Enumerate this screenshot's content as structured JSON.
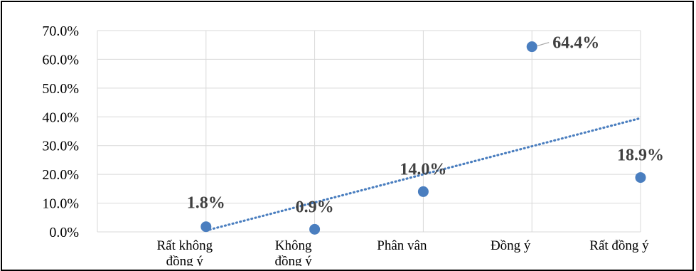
{
  "chart_data": {
    "type": "scatter",
    "categories": [
      [
        "Rất không",
        "đồng ý"
      ],
      [
        "Không",
        "đồng ý"
      ],
      [
        "Phân vân"
      ],
      [
        "Đồng ý"
      ],
      [
        "Rất đồng ý"
      ]
    ],
    "values": [
      1.8,
      0.9,
      14.0,
      64.4,
      18.9
    ],
    "data_labels": [
      "1.8%",
      "0.9%",
      "14.0%",
      "64.4%",
      "18.9%"
    ],
    "y_ticks": [
      "0.0%",
      "10.0%",
      "20.0%",
      "30.0%",
      "40.0%",
      "50.0%",
      "60.0%",
      "70.0%"
    ],
    "ylim": [
      0,
      70
    ],
    "trendline": {
      "type": "linear",
      "style": "dotted"
    },
    "grid": true,
    "colors": {
      "marker": "#4a7ebf",
      "trendline": "#4a7ebf",
      "grid": "#d9d9d9",
      "label": "#404040"
    }
  }
}
